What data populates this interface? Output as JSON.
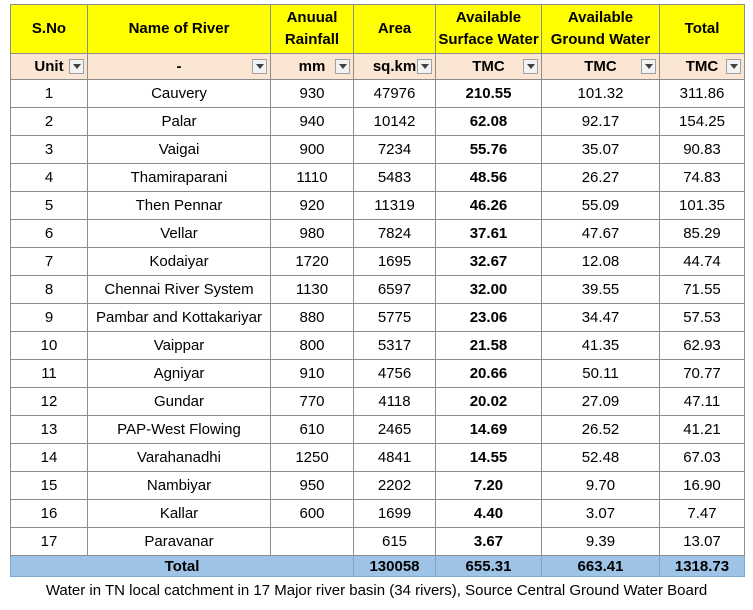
{
  "headers": [
    "S.No",
    "Name of River",
    "Anuual\nRainfall",
    "Area",
    "Available\nSurface Water",
    "Available\nGround Water",
    "Total"
  ],
  "units": [
    "Unit",
    "-",
    "mm",
    "sq.km",
    "TMC",
    "TMC",
    "TMC"
  ],
  "rows": [
    [
      "1",
      "Cauvery",
      "930",
      "47976",
      "210.55",
      "101.32",
      "311.86"
    ],
    [
      "2",
      "Palar",
      "940",
      "10142",
      "62.08",
      "92.17",
      "154.25"
    ],
    [
      "3",
      "Vaigai",
      "900",
      "7234",
      "55.76",
      "35.07",
      "90.83"
    ],
    [
      "4",
      "Thamiraparani",
      "1110",
      "5483",
      "48.56",
      "26.27",
      "74.83"
    ],
    [
      "5",
      "Then Pennar",
      "920",
      "11319",
      "46.26",
      "55.09",
      "101.35"
    ],
    [
      "6",
      "Vellar",
      "980",
      "7824",
      "37.61",
      "47.67",
      "85.29"
    ],
    [
      "7",
      "Kodaiyar",
      "1720",
      "1695",
      "32.67",
      "12.08",
      "44.74"
    ],
    [
      "8",
      "Chennai River System",
      "1130",
      "6597",
      "32.00",
      "39.55",
      "71.55"
    ],
    [
      "9",
      "Pambar and Kottakariyar",
      "880",
      "5775",
      "23.06",
      "34.47",
      "57.53"
    ],
    [
      "10",
      "Vaippar",
      "800",
      "5317",
      "21.58",
      "41.35",
      "62.93"
    ],
    [
      "11",
      "Agniyar",
      "910",
      "4756",
      "20.66",
      "50.11",
      "70.77"
    ],
    [
      "12",
      "Gundar",
      "770",
      "4118",
      "20.02",
      "27.09",
      "47.11"
    ],
    [
      "13",
      "PAP-West Flowing",
      "610",
      "2465",
      "14.69",
      "26.52",
      "41.21"
    ],
    [
      "14",
      "Varahanadhi",
      "1250",
      "4841",
      "14.55",
      "52.48",
      "67.03"
    ],
    [
      "15",
      "Nambiyar",
      "950",
      "2202",
      "7.20",
      "9.70",
      "16.90"
    ],
    [
      "16",
      "Kallar",
      "600",
      "1699",
      "4.40",
      "3.07",
      "7.47"
    ],
    [
      "17",
      "Paravanar",
      "",
      "615",
      "3.67",
      "9.39",
      "13.07"
    ]
  ],
  "total": {
    "label": "Total",
    "area": "130058",
    "surface": "655.31",
    "ground": "663.41",
    "total": "1318.73"
  },
  "footnote": "Water in TN local catchment in 17 Major river basin (34 rivers), Source Central Ground Water Board",
  "colors": {
    "header_bg": "#ffff00",
    "unit_bg": "#fbe5d3",
    "total_bg": "#9dc3e6",
    "border": "#8c8c8c"
  },
  "icons": {
    "filter": "filter-dropdown-icon"
  }
}
